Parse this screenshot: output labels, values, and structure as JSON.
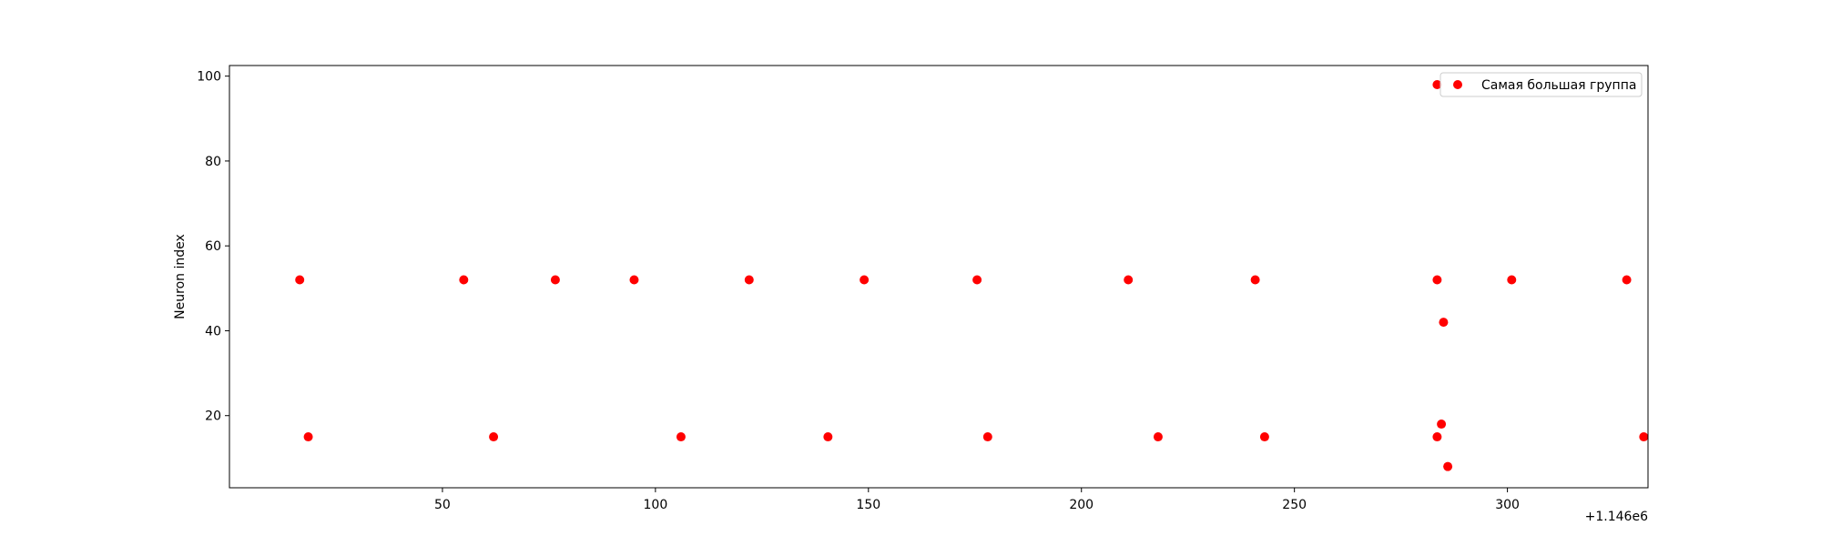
{
  "chart_data": {
    "type": "scatter",
    "title": "",
    "xlabel": "",
    "ylabel": "Neuron index",
    "x_offset_label": "+1.146e6",
    "xlim": [
      1146000,
      1146333
    ],
    "ylim": [
      3,
      102.5
    ],
    "xticks": [
      50,
      100,
      150,
      200,
      250,
      300
    ],
    "yticks": [
      20,
      40,
      60,
      80,
      100
    ],
    "grid": false,
    "legend_position": "top-right",
    "series": [
      {
        "name": "Самая большая группа",
        "color": "#ff0000",
        "x": [
          1146016.5,
          1146055,
          1146076.5,
          1146095,
          1146122,
          1146149,
          1146175.5,
          1146211,
          1146240.8,
          1146283.5,
          1146301,
          1146328,
          1146018.5,
          1146062,
          1146106,
          1146140.5,
          1146178,
          1146218,
          1146243,
          1146283.5,
          1146284.5,
          1146285,
          1146286,
          1146332,
          1146283.5
        ],
        "y": [
          52,
          52,
          52,
          52,
          52,
          52,
          52,
          52,
          52,
          52,
          52,
          52,
          15,
          15,
          15,
          15,
          15,
          15,
          15,
          15,
          18,
          42,
          8,
          15,
          98
        ]
      }
    ]
  }
}
